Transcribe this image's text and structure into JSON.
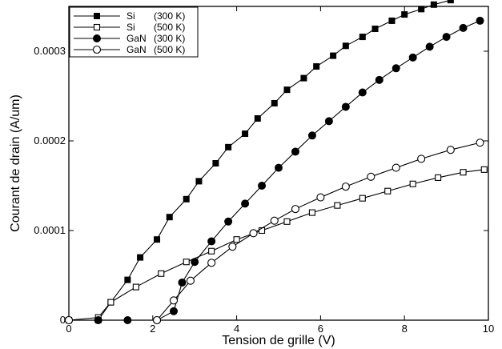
{
  "chart_data": {
    "type": "line",
    "xlabel": "Tension de grille (V)",
    "ylabel": "Courant de drain (A/um)",
    "xlim": [
      0,
      10
    ],
    "ylim": [
      0,
      0.00035
    ],
    "x_ticks": [
      0,
      2,
      4,
      6,
      8,
      10
    ],
    "x_tick_labels": [
      "0",
      "2",
      "4",
      "6",
      "8",
      "10"
    ],
    "y_ticks": [
      0,
      0.0001,
      0.0002,
      0.0003
    ],
    "y_tick_labels": [
      "0",
      "0.0001",
      "0.0002",
      "0.0003"
    ],
    "grid": false,
    "legend_position": "top-left",
    "series": [
      {
        "name": "Si",
        "legend_temp": "(300 K)",
        "marker": "filled-square",
        "x": [
          0,
          0.7,
          1.0,
          1.4,
          1.7,
          2.1,
          2.4,
          2.8,
          3.1,
          3.5,
          3.8,
          4.2,
          4.5,
          4.9,
          5.2,
          5.6,
          5.9,
          6.3,
          6.6,
          7.0,
          7.3,
          7.7,
          8.0,
          8.4,
          8.7,
          9.1,
          9.4,
          9.8
        ],
        "y": [
          0,
          0,
          2e-05,
          4.5e-05,
          7e-05,
          9e-05,
          0.000115,
          0.000135,
          0.000155,
          0.000175,
          0.000193,
          0.000208,
          0.000225,
          0.000242,
          0.000257,
          0.00027,
          0.000283,
          0.000295,
          0.000306,
          0.000316,
          0.000325,
          0.000334,
          0.000341,
          0.000347,
          0.000352,
          0.000357,
          0.000361,
          0.000364
        ]
      },
      {
        "name": "Si",
        "legend_temp": "(500 K)",
        "marker": "open-square",
        "x": [
          0,
          0.7,
          1.0,
          1.6,
          2.2,
          2.8,
          3.4,
          4.0,
          4.6,
          5.2,
          5.8,
          6.4,
          7.0,
          7.6,
          8.2,
          8.8,
          9.4,
          9.9
        ],
        "y": [
          0,
          3e-06,
          2e-05,
          3.7e-05,
          5.2e-05,
          6.5e-05,
          7.7e-05,
          9e-05,
          0.0001,
          0.00011,
          0.00012,
          0.000128,
          0.000136,
          0.000144,
          0.000152,
          0.000159,
          0.000165,
          0.000168
        ]
      },
      {
        "name": "GaN",
        "legend_temp": "(300 K)",
        "marker": "filled-circle",
        "x": [
          0,
          0.7,
          1.4,
          2.1,
          2.5,
          2.7,
          3.0,
          3.4,
          3.8,
          4.2,
          4.6,
          5.0,
          5.4,
          5.8,
          6.2,
          6.6,
          7.0,
          7.4,
          7.8,
          8.2,
          8.6,
          9.0,
          9.4,
          9.8
        ],
        "y": [
          0,
          0,
          0,
          0,
          1e-05,
          4.2e-05,
          6.5e-05,
          8.8e-05,
          0.00011,
          0.00013,
          0.00015,
          0.00017,
          0.000188,
          0.000206,
          0.000222,
          0.000238,
          0.000254,
          0.000268,
          0.000281,
          0.000293,
          0.000305,
          0.000316,
          0.000326,
          0.000334
        ]
      },
      {
        "name": "GaN",
        "legend_temp": "(500 K)",
        "marker": "open-circle",
        "x": [
          0,
          2.1,
          2.5,
          2.9,
          3.4,
          3.9,
          4.4,
          4.9,
          5.4,
          6.0,
          6.6,
          7.2,
          7.8,
          8.4,
          9.1,
          9.8
        ],
        "y": [
          0,
          0,
          2.2e-05,
          4.4e-05,
          6.4e-05,
          8.2e-05,
          9.7e-05,
          0.000111,
          0.000124,
          0.000137,
          0.000149,
          0.00016,
          0.00017,
          0.00018,
          0.00019,
          0.000198
        ]
      }
    ]
  }
}
